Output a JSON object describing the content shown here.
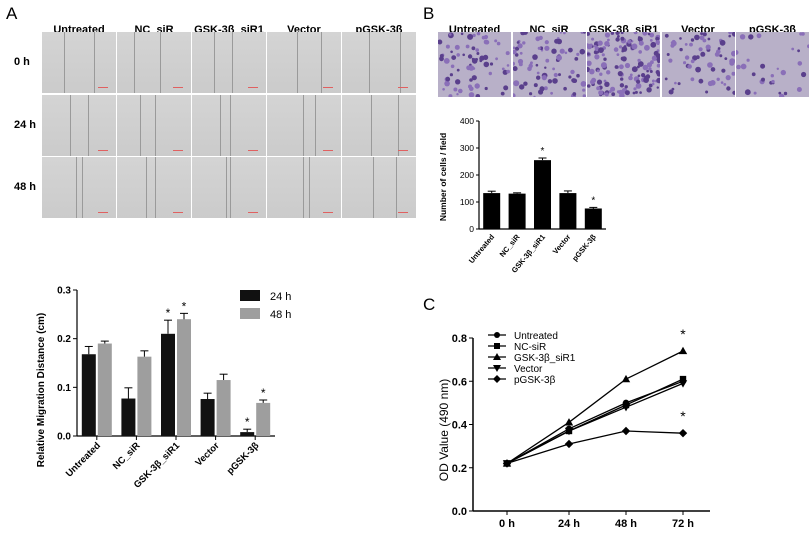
{
  "panels": {
    "A": {
      "letter": "A"
    },
    "B": {
      "letter": "B"
    },
    "C": {
      "letter": "C"
    }
  },
  "groups": [
    "Untreated",
    "NC_siR",
    "GSK-3β_siR1",
    "Vector",
    "pGSK-3β"
  ],
  "timepoints": [
    "0 h",
    "24 h",
    "48 h"
  ],
  "colors": {
    "bar_24h": "#111111",
    "bar_48h": "#9e9e9e",
    "axis": "#000000"
  },
  "chart_data": [
    {
      "type": "bar",
      "panel": "A",
      "categories": [
        "Untreated",
        "NC_siR",
        "GSK-3β_siR1",
        "Vector",
        "pGSK-3β"
      ],
      "series": [
        {
          "name": "24 h",
          "values": [
            0.168,
            0.077,
            0.21,
            0.076,
            0.008
          ],
          "errors": [
            0.016,
            0.022,
            0.028,
            0.012,
            0.006
          ]
        },
        {
          "name": "48 h",
          "values": [
            0.19,
            0.163,
            0.24,
            0.115,
            0.068
          ],
          "errors": [
            0.005,
            0.012,
            0.012,
            0.012,
            0.006
          ]
        }
      ],
      "significance": [
        {
          "category": "GSK-3β_siR1",
          "series": "24 h",
          "label": "*"
        },
        {
          "category": "GSK-3β_siR1",
          "series": "48 h",
          "label": "*"
        },
        {
          "category": "pGSK-3β",
          "series": "24 h",
          "label": "*"
        },
        {
          "category": "pGSK-3β",
          "series": "48 h",
          "label": "*"
        }
      ],
      "xlabel": "",
      "ylabel": "Relative Migration Distance (cm)",
      "ylim": [
        0,
        0.3
      ],
      "yticks": [
        "0.0",
        "0.1",
        "0.2",
        "0.3"
      ],
      "legend_position": "top-right",
      "grid": false
    },
    {
      "type": "bar",
      "panel": "B",
      "categories": [
        "Untreated",
        "NC_siR",
        "GSK-3β_siR1",
        "Vector",
        "pGSK-3β"
      ],
      "values": [
        133,
        131,
        255,
        133,
        76
      ],
      "errors": [
        7,
        3,
        8,
        8,
        4
      ],
      "significance": [
        {
          "category": "GSK-3β_siR1",
          "label": "*"
        },
        {
          "category": "pGSK-3β",
          "label": "*"
        }
      ],
      "xlabel": "",
      "ylabel": "Number of cells / field",
      "ylim": [
        0,
        400
      ],
      "yticks": [
        "0",
        "100",
        "200",
        "300",
        "400"
      ],
      "grid": false
    },
    {
      "type": "line",
      "panel": "C",
      "x": [
        "0 h",
        "24 h",
        "48 h",
        "72 h"
      ],
      "series": [
        {
          "name": "Untreated",
          "marker": "circle",
          "values": [
            0.22,
            0.38,
            0.5,
            0.6
          ]
        },
        {
          "name": "NC-siR",
          "marker": "square",
          "values": [
            0.22,
            0.37,
            0.49,
            0.61
          ]
        },
        {
          "name": "GSK-3β_siR1",
          "marker": "triangle-up",
          "values": [
            0.22,
            0.41,
            0.61,
            0.74
          ]
        },
        {
          "name": "Vector",
          "marker": "triangle-down",
          "values": [
            0.22,
            0.37,
            0.48,
            0.59
          ]
        },
        {
          "name": "pGSK-3β",
          "marker": "diamond",
          "values": [
            0.22,
            0.31,
            0.37,
            0.36
          ]
        }
      ],
      "errors": [
        0.01,
        0.01,
        0.01,
        0.01
      ],
      "significance": [
        {
          "x": "72 h",
          "series": "GSK-3β_siR1",
          "label": "*"
        },
        {
          "x": "72 h",
          "series": "pGSK-3β",
          "label": "*"
        }
      ],
      "xlabel": "",
      "ylabel": "OD Value (490 nm)",
      "ylim": [
        0,
        0.8
      ],
      "yticks": [
        "0.0",
        "0.2",
        "0.4",
        "0.6",
        "0.8"
      ],
      "legend_position": "top-left",
      "grid": false
    }
  ]
}
